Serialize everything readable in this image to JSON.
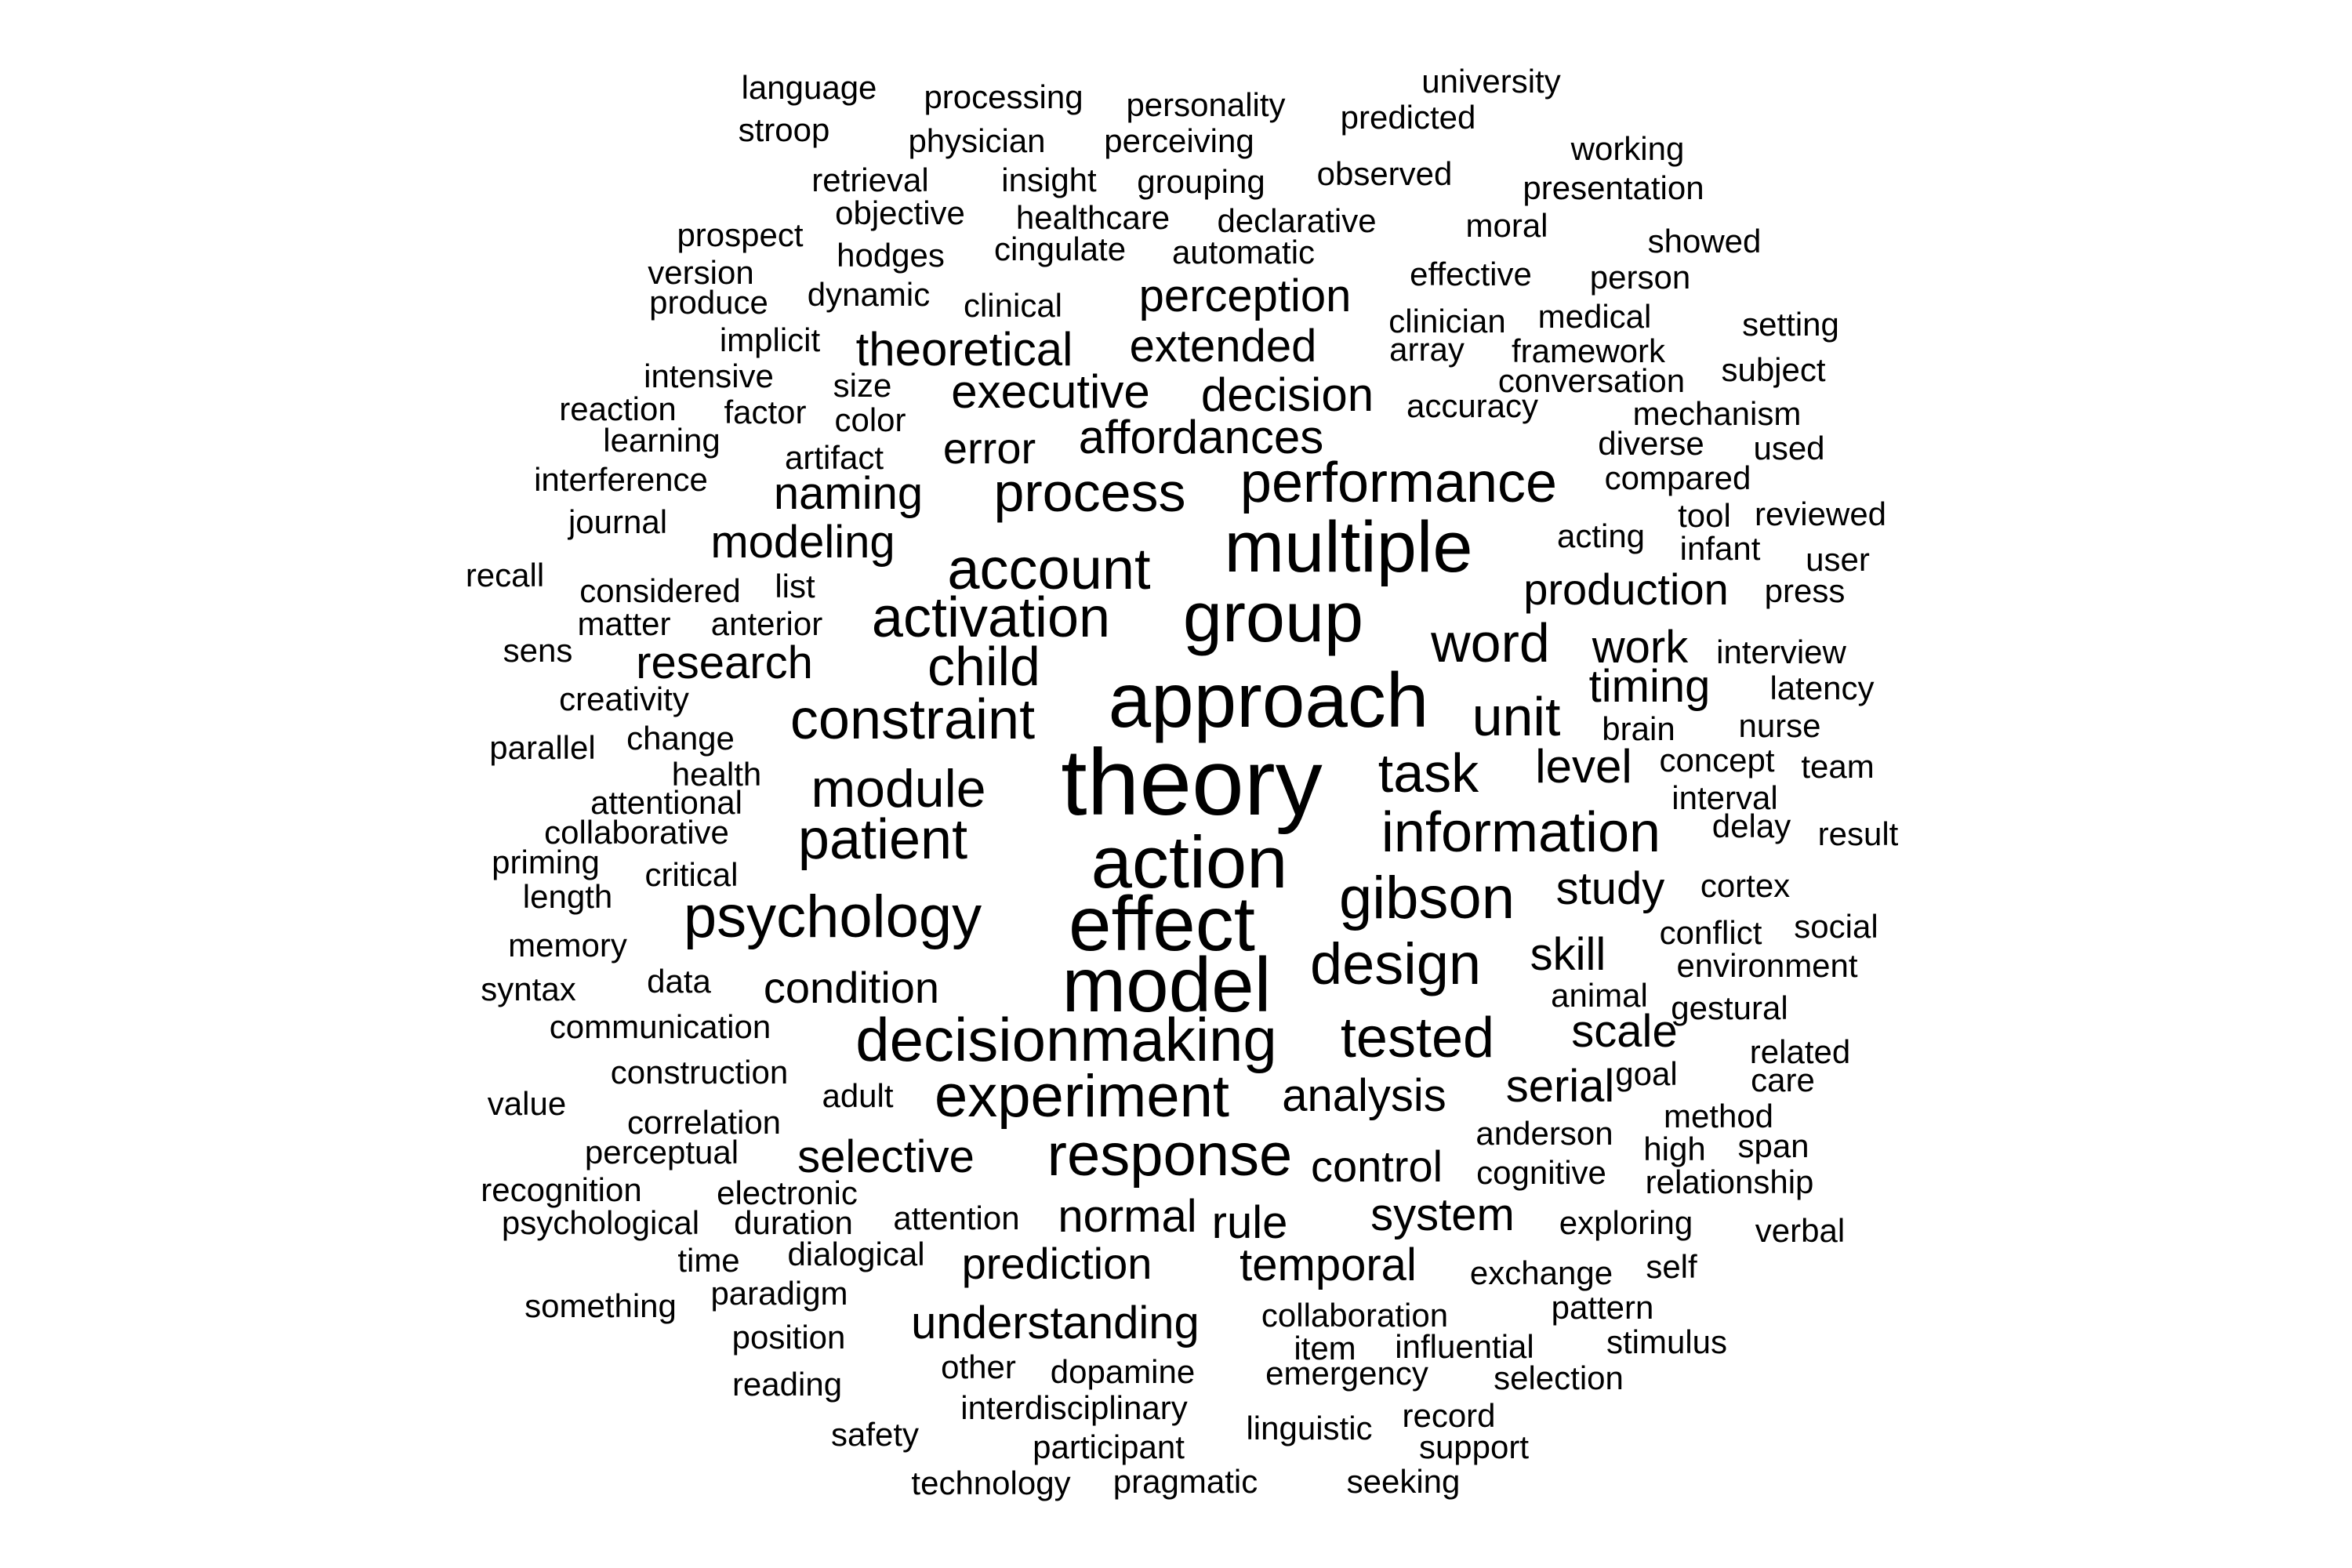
{
  "cloud": {
    "words": [
      {
        "text": "theory",
        "weight": 120
      },
      {
        "text": "model",
        "weight": 98
      },
      {
        "text": "effect",
        "weight": 98
      },
      {
        "text": "approach",
        "weight": 98
      },
      {
        "text": "action",
        "weight": 94
      },
      {
        "text": "multiple",
        "weight": 92
      },
      {
        "text": "group",
        "weight": 90
      },
      {
        "text": "decisionmaking",
        "weight": 78
      },
      {
        "text": "psychology",
        "weight": 76
      },
      {
        "text": "gibson",
        "weight": 76
      },
      {
        "text": "response",
        "weight": 76
      },
      {
        "text": "experiment",
        "weight": 76
      },
      {
        "text": "account",
        "weight": 74
      },
      {
        "text": "design",
        "weight": 74
      },
      {
        "text": "activation",
        "weight": 72
      },
      {
        "text": "performance",
        "weight": 72
      },
      {
        "text": "constraint",
        "weight": 72
      },
      {
        "text": "patient",
        "weight": 72
      },
      {
        "text": "information",
        "weight": 72
      },
      {
        "text": "tested",
        "weight": 72
      },
      {
        "text": "child",
        "weight": 70
      },
      {
        "text": "process",
        "weight": 70
      },
      {
        "text": "word",
        "weight": 70
      },
      {
        "text": "unit",
        "weight": 70
      },
      {
        "text": "task",
        "weight": 70
      },
      {
        "text": "module",
        "weight": 68
      },
      {
        "text": "perception",
        "weight": 58
      },
      {
        "text": "theoretical",
        "weight": 60
      },
      {
        "text": "extended",
        "weight": 58
      },
      {
        "text": "executive",
        "weight": 60
      },
      {
        "text": "decision",
        "weight": 60
      },
      {
        "text": "affordances",
        "weight": 60
      },
      {
        "text": "error",
        "weight": 56
      },
      {
        "text": "naming",
        "weight": 58
      },
      {
        "text": "modeling",
        "weight": 58
      },
      {
        "text": "research",
        "weight": 58
      },
      {
        "text": "production",
        "weight": 56
      },
      {
        "text": "work",
        "weight": 58
      },
      {
        "text": "timing",
        "weight": 58
      },
      {
        "text": "level",
        "weight": 60
      },
      {
        "text": "study",
        "weight": 58
      },
      {
        "text": "skill",
        "weight": 58
      },
      {
        "text": "scale",
        "weight": 58
      },
      {
        "text": "condition",
        "weight": 56
      },
      {
        "text": "analysis",
        "weight": 58
      },
      {
        "text": "serial",
        "weight": 58
      },
      {
        "text": "selective",
        "weight": 58
      },
      {
        "text": "control",
        "weight": 56
      },
      {
        "text": "normal",
        "weight": 58
      },
      {
        "text": "rule",
        "weight": 58
      },
      {
        "text": "system",
        "weight": 58
      },
      {
        "text": "prediction",
        "weight": 56
      },
      {
        "text": "temporal",
        "weight": 58
      },
      {
        "text": "understanding",
        "weight": 58
      },
      {
        "text": "language",
        "weight": 42
      },
      {
        "text": "processing",
        "weight": 42
      },
      {
        "text": "personality",
        "weight": 42
      },
      {
        "text": "university",
        "weight": 42
      },
      {
        "text": "predicted",
        "weight": 42
      },
      {
        "text": "stroop",
        "weight": 42
      },
      {
        "text": "physician",
        "weight": 42
      },
      {
        "text": "perceiving",
        "weight": 42
      },
      {
        "text": "working",
        "weight": 42
      },
      {
        "text": "observed",
        "weight": 42
      },
      {
        "text": "retrieval",
        "weight": 42
      },
      {
        "text": "insight",
        "weight": 42
      },
      {
        "text": "grouping",
        "weight": 42
      },
      {
        "text": "presentation",
        "weight": 42
      },
      {
        "text": "objective",
        "weight": 42
      },
      {
        "text": "healthcare",
        "weight": 42
      },
      {
        "text": "declarative",
        "weight": 42
      },
      {
        "text": "moral",
        "weight": 42
      },
      {
        "text": "prospect",
        "weight": 42
      },
      {
        "text": "hodges",
        "weight": 42
      },
      {
        "text": "cingulate",
        "weight": 42
      },
      {
        "text": "automatic",
        "weight": 42
      },
      {
        "text": "showed",
        "weight": 42
      },
      {
        "text": "version",
        "weight": 42
      },
      {
        "text": "effective",
        "weight": 42
      },
      {
        "text": "person",
        "weight": 42
      },
      {
        "text": "produce",
        "weight": 42
      },
      {
        "text": "dynamic",
        "weight": 42
      },
      {
        "text": "clinical",
        "weight": 42
      },
      {
        "text": "clinician",
        "weight": 42
      },
      {
        "text": "medical",
        "weight": 42
      },
      {
        "text": "setting",
        "weight": 42
      },
      {
        "text": "implicit",
        "weight": 42
      },
      {
        "text": "array",
        "weight": 42
      },
      {
        "text": "framework",
        "weight": 42
      },
      {
        "text": "intensive",
        "weight": 42
      },
      {
        "text": "size",
        "weight": 42
      },
      {
        "text": "conversation",
        "weight": 42
      },
      {
        "text": "subject",
        "weight": 42
      },
      {
        "text": "reaction",
        "weight": 42
      },
      {
        "text": "factor",
        "weight": 42
      },
      {
        "text": "color",
        "weight": 42
      },
      {
        "text": "accuracy",
        "weight": 42
      },
      {
        "text": "mechanism",
        "weight": 42
      },
      {
        "text": "learning",
        "weight": 42
      },
      {
        "text": "diverse",
        "weight": 42
      },
      {
        "text": "used",
        "weight": 42
      },
      {
        "text": "artifact",
        "weight": 42
      },
      {
        "text": "interference",
        "weight": 42
      },
      {
        "text": "compared",
        "weight": 42
      },
      {
        "text": "journal",
        "weight": 42
      },
      {
        "text": "acting",
        "weight": 42
      },
      {
        "text": "tool",
        "weight": 42
      },
      {
        "text": "reviewed",
        "weight": 42
      },
      {
        "text": "infant",
        "weight": 42
      },
      {
        "text": "user",
        "weight": 42
      },
      {
        "text": "recall",
        "weight": 42
      },
      {
        "text": "considered",
        "weight": 42
      },
      {
        "text": "list",
        "weight": 42
      },
      {
        "text": "press",
        "weight": 42
      },
      {
        "text": "matter",
        "weight": 42
      },
      {
        "text": "anterior",
        "weight": 42
      },
      {
        "text": "sens",
        "weight": 42
      },
      {
        "text": "interview",
        "weight": 42
      },
      {
        "text": "creativity",
        "weight": 42
      },
      {
        "text": "latency",
        "weight": 42
      },
      {
        "text": "parallel",
        "weight": 42
      },
      {
        "text": "change",
        "weight": 42
      },
      {
        "text": "brain",
        "weight": 42
      },
      {
        "text": "nurse",
        "weight": 42
      },
      {
        "text": "health",
        "weight": 42
      },
      {
        "text": "concept",
        "weight": 42
      },
      {
        "text": "team",
        "weight": 42
      },
      {
        "text": "attentional",
        "weight": 42
      },
      {
        "text": "interval",
        "weight": 42
      },
      {
        "text": "collaborative",
        "weight": 42
      },
      {
        "text": "delay",
        "weight": 42
      },
      {
        "text": "result",
        "weight": 42
      },
      {
        "text": "priming",
        "weight": 42
      },
      {
        "text": "critical",
        "weight": 42
      },
      {
        "text": "cortex",
        "weight": 42
      },
      {
        "text": "length",
        "weight": 42
      },
      {
        "text": "conflict",
        "weight": 42
      },
      {
        "text": "social",
        "weight": 42
      },
      {
        "text": "memory",
        "weight": 42
      },
      {
        "text": "environment",
        "weight": 42
      },
      {
        "text": "syntax",
        "weight": 42
      },
      {
        "text": "data",
        "weight": 42
      },
      {
        "text": "animal",
        "weight": 42
      },
      {
        "text": "gestural",
        "weight": 42
      },
      {
        "text": "communication",
        "weight": 42
      },
      {
        "text": "related",
        "weight": 42
      },
      {
        "text": "construction",
        "weight": 42
      },
      {
        "text": "goal",
        "weight": 42
      },
      {
        "text": "care",
        "weight": 42
      },
      {
        "text": "value",
        "weight": 42
      },
      {
        "text": "adult",
        "weight": 42
      },
      {
        "text": "method",
        "weight": 42
      },
      {
        "text": "correlation",
        "weight": 42
      },
      {
        "text": "anderson",
        "weight": 42
      },
      {
        "text": "perceptual",
        "weight": 42
      },
      {
        "text": "high",
        "weight": 42
      },
      {
        "text": "span",
        "weight": 42
      },
      {
        "text": "cognitive",
        "weight": 42
      },
      {
        "text": "relationship",
        "weight": 42
      },
      {
        "text": "recognition",
        "weight": 42
      },
      {
        "text": "electronic",
        "weight": 42
      },
      {
        "text": "psychological",
        "weight": 42
      },
      {
        "text": "duration",
        "weight": 42
      },
      {
        "text": "attention",
        "weight": 42
      },
      {
        "text": "exploring",
        "weight": 42
      },
      {
        "text": "verbal",
        "weight": 42
      },
      {
        "text": "time",
        "weight": 42
      },
      {
        "text": "dialogical",
        "weight": 42
      },
      {
        "text": "exchange",
        "weight": 42
      },
      {
        "text": "self",
        "weight": 42
      },
      {
        "text": "something",
        "weight": 42
      },
      {
        "text": "paradigm",
        "weight": 42
      },
      {
        "text": "collaboration",
        "weight": 42
      },
      {
        "text": "pattern",
        "weight": 42
      },
      {
        "text": "position",
        "weight": 42
      },
      {
        "text": "item",
        "weight": 42
      },
      {
        "text": "influential",
        "weight": 42
      },
      {
        "text": "stimulus",
        "weight": 42
      },
      {
        "text": "other",
        "weight": 42
      },
      {
        "text": "dopamine",
        "weight": 42
      },
      {
        "text": "emergency",
        "weight": 42
      },
      {
        "text": "selection",
        "weight": 42
      },
      {
        "text": "reading",
        "weight": 42
      },
      {
        "text": "interdisciplinary",
        "weight": 42
      },
      {
        "text": "record",
        "weight": 42
      },
      {
        "text": "linguistic",
        "weight": 42
      },
      {
        "text": "safety",
        "weight": 42
      },
      {
        "text": "participant",
        "weight": 42
      },
      {
        "text": "support",
        "weight": 42
      },
      {
        "text": "technology",
        "weight": 42
      },
      {
        "text": "pragmatic",
        "weight": 42
      },
      {
        "text": "seeking",
        "weight": 42
      }
    ]
  }
}
